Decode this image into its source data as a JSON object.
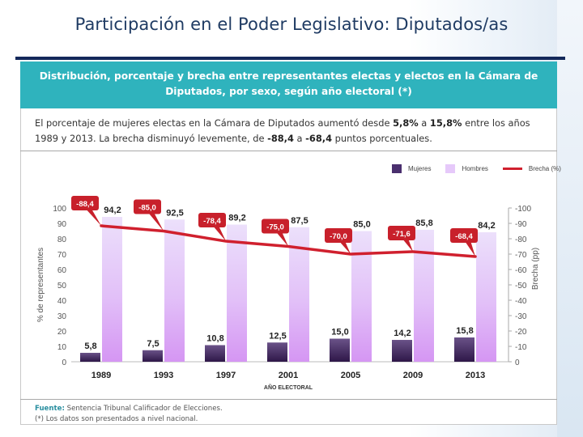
{
  "slide": {
    "title": "Participación en el Poder Legislativo: Diputados/as"
  },
  "panel": {
    "header_line1": "Distribución, porcentaje y brecha entre representantes electas y electos en la Cámara de",
    "header_line2": "Diputados, por sexo, según año electoral (*)",
    "summary": {
      "part1": "El porcentaje de mujeres electas en la Cámara de Diputados aumentó desde ",
      "bold1": "5,8%",
      "part2": " a ",
      "bold2": "15,8%",
      "part3": " entre los años",
      "part4": "1989 y 2013. La brecha disminuyó levemente, de ",
      "bold3": "-88,4",
      "part5": " a ",
      "bold4": "-68,4",
      "part6": " puntos porcentuales."
    },
    "footer": {
      "source_label": "Fuente:",
      "source_text": " Sentencia Tribunal Calificador de Elecciones.",
      "note": "(*) Los datos son presentados a nivel nacional."
    }
  },
  "colors": {
    "mujeres": "#4a2f6e",
    "hombres": "#d6a6f2",
    "brecha": "#d0202e",
    "header": "#2fb3bd",
    "title": "#1f3b63"
  },
  "chart_data": {
    "type": "bar",
    "title": "Distribución, porcentaje y brecha entre representantes electas y electos en la Cámara de Diputados, por sexo, según año electoral (*)",
    "categories": [
      "1989",
      "1993",
      "1997",
      "2001",
      "2005",
      "2009",
      "2013"
    ],
    "series": [
      {
        "name": "Mujeres",
        "type": "bar",
        "axis": "left",
        "values": [
          5.8,
          7.5,
          10.8,
          12.5,
          15.0,
          14.2,
          15.8
        ],
        "labels": [
          "5,8",
          "7,5",
          "10,8",
          "12,5",
          "15,0",
          "14,2",
          "15,8"
        ]
      },
      {
        "name": "Hombres",
        "type": "bar",
        "axis": "left",
        "values": [
          94.2,
          92.5,
          89.2,
          87.5,
          85.0,
          85.8,
          84.2
        ],
        "labels": [
          "94,2",
          "92,5",
          "89,2",
          "87,5",
          "85,0",
          "85,8",
          "84,2"
        ]
      },
      {
        "name": "Brecha (%)",
        "type": "line",
        "axis": "right",
        "values": [
          -88.4,
          -85.0,
          -78.4,
          -75.0,
          -70.0,
          -71.6,
          -68.4
        ],
        "labels": [
          "-88,4",
          "-85,0",
          "-78,4",
          "-75,0",
          "-70,0",
          "-71,6",
          "-68,4"
        ]
      }
    ],
    "xlabel": "AÑO ELECTORAL",
    "ylabel": "% de representantes",
    "y2label": "Brecha (pp)",
    "ylim": [
      0,
      100
    ],
    "y2lim": [
      0,
      -100
    ],
    "yticks": [
      "0",
      "10",
      "20",
      "30",
      "40",
      "50",
      "60",
      "70",
      "80",
      "90",
      "100"
    ],
    "y2ticks": [
      "0",
      "-10",
      "-20",
      "-30",
      "-40",
      "-50",
      "-60",
      "-70",
      "-80",
      "-90",
      "-100"
    ],
    "grid": false,
    "legend": {
      "position": "top-right",
      "entries": [
        "Mujeres",
        "Hombres",
        "Brecha (%)"
      ]
    }
  }
}
